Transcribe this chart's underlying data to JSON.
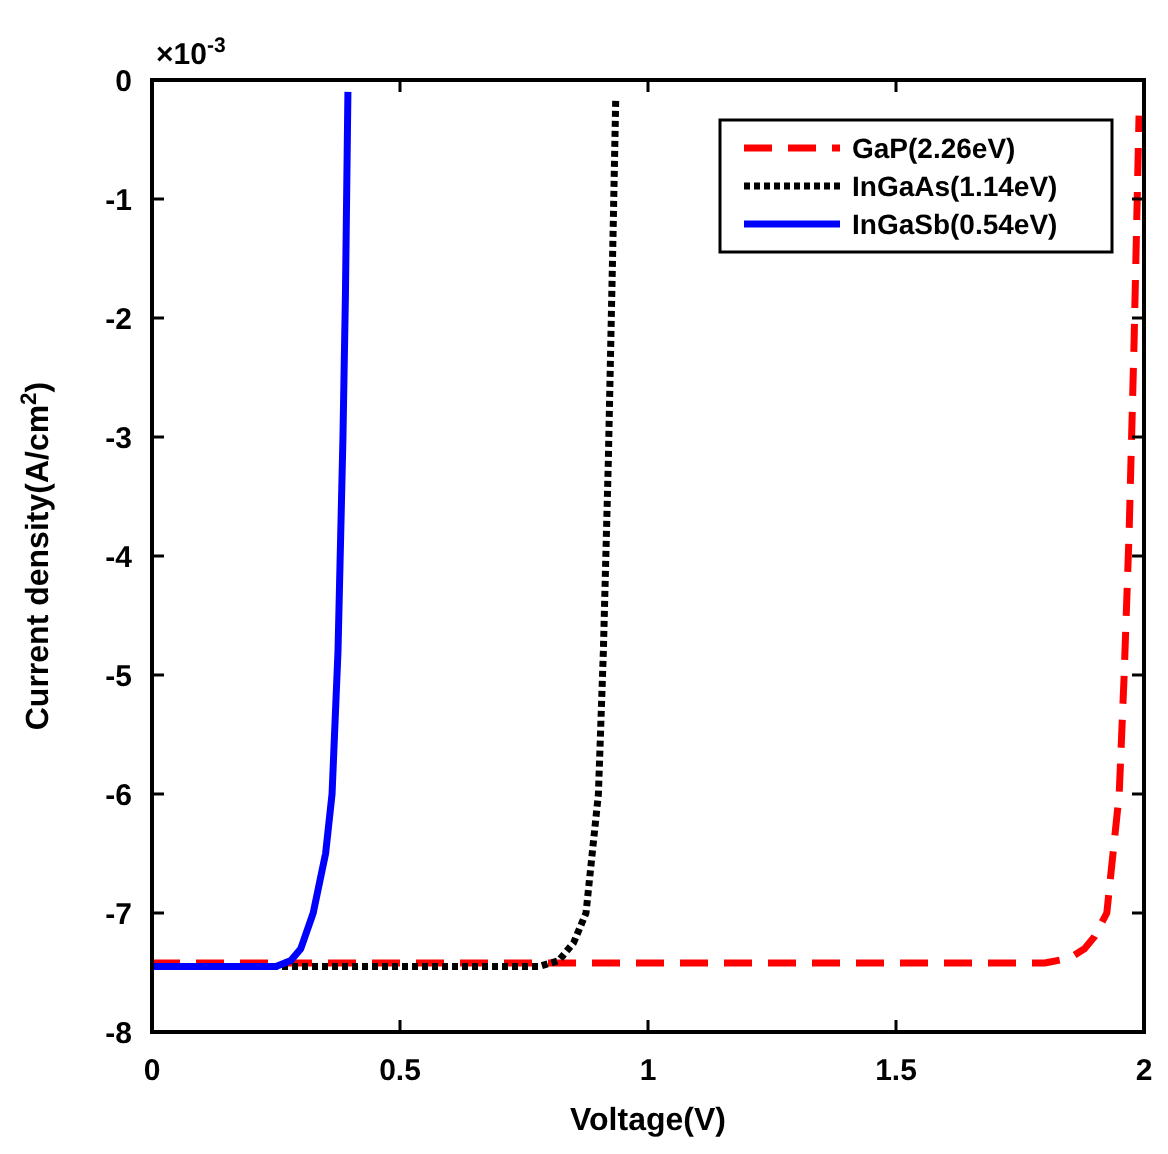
{
  "chart_data": {
    "type": "line",
    "xlabel": "Voltage(V)",
    "ylabel": "Current density(A/cm$^{2}$)",
    "annotations": [
      "×10$^{-3}$"
    ],
    "xlim": [
      0,
      2
    ],
    "ylim": [
      -8,
      0
    ],
    "xticks": [
      0,
      0.5,
      1,
      1.5,
      2
    ],
    "yticks": [
      -8,
      -7,
      -6,
      -5,
      -4,
      -3,
      -2,
      -1,
      0
    ],
    "legend": "top right",
    "grid": false,
    "series": [
      {
        "name": "GaP(2.26eV)",
        "color": "#ff0000",
        "line_style": "dashed",
        "x": [
          0,
          0.5,
          1,
          1.5,
          1.8,
          1.85,
          1.88,
          1.9,
          1.925,
          1.95,
          1.96,
          1.97,
          1.98,
          1.99
        ],
        "values": [
          -7.42,
          -7.42,
          -7.42,
          -7.42,
          -7.42,
          -7.38,
          -7.3,
          -7.2,
          -7,
          -6,
          -5,
          -3.8,
          -2.2,
          -0.3
        ]
      },
      {
        "name": "InGaAs(1.14eV)",
        "color": "#000000",
        "line_style": "dotted",
        "x": [
          0,
          0.5,
          0.78,
          0.82,
          0.85,
          0.875,
          0.9,
          0.91,
          0.92,
          0.93,
          0.935
        ],
        "values": [
          -7.45,
          -7.45,
          -7.45,
          -7.4,
          -7.25,
          -7,
          -6,
          -4.8,
          -3.2,
          -1.2,
          -0.15
        ]
      },
      {
        "name": "InGaSb(0.54eV)",
        "color": "#0000ff",
        "line_style": "solid",
        "x": [
          0,
          0.25,
          0.28,
          0.3,
          0.325,
          0.35,
          0.363,
          0.375,
          0.385,
          0.39,
          0.395
        ],
        "values": [
          -7.45,
          -7.45,
          -7.4,
          -7.3,
          -7,
          -6.5,
          -6,
          -4.8,
          -3,
          -1.8,
          -0.1
        ]
      }
    ]
  }
}
